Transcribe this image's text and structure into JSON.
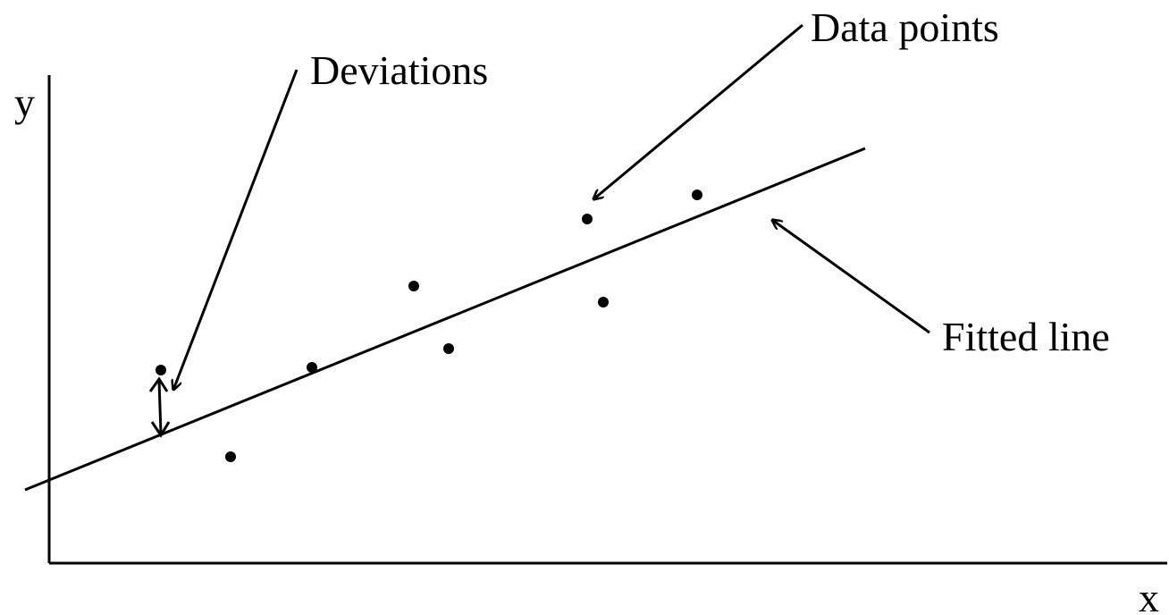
{
  "axes": {
    "y_label": "y",
    "x_label": "x"
  },
  "annotations": {
    "deviations": "Deviations",
    "data_points": "Data points",
    "fitted_line": "Fitted line"
  },
  "colors": {
    "ink": "#000000",
    "background": "#ffffff"
  }
}
